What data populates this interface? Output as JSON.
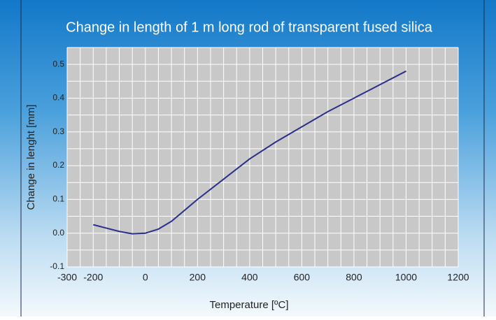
{
  "chart_data": {
    "type": "line",
    "title": "Change in length of 1 m long rod of transparent fused silica",
    "xlabel": "Temperature [ºC]",
    "ylabel": "Change in lenght [mm]",
    "x": [
      -200,
      -150,
      -100,
      -50,
      0,
      50,
      100,
      200,
      300,
      400,
      500,
      600,
      700,
      800,
      900,
      1000
    ],
    "series": [
      {
        "name": "Change in length",
        "color": "#2b2f8c",
        "values": [
          0.025,
          0.015,
          0.005,
          -0.002,
          0.0,
          0.012,
          0.035,
          0.1,
          0.16,
          0.22,
          0.27,
          0.315,
          0.36,
          0.4,
          0.44,
          0.48
        ]
      }
    ],
    "xlim": [
      -300,
      1200
    ],
    "xticks": [
      -300,
      -200,
      0,
      200,
      400,
      600,
      800,
      1000,
      1200
    ],
    "ylim": [
      -0.1,
      0.55
    ],
    "yticks": [
      -0.1,
      {
        "value": 0,
        "label": "0.0"
      },
      0.1,
      0.2,
      0.3,
      0.4,
      0.5
    ],
    "grid": true
  }
}
